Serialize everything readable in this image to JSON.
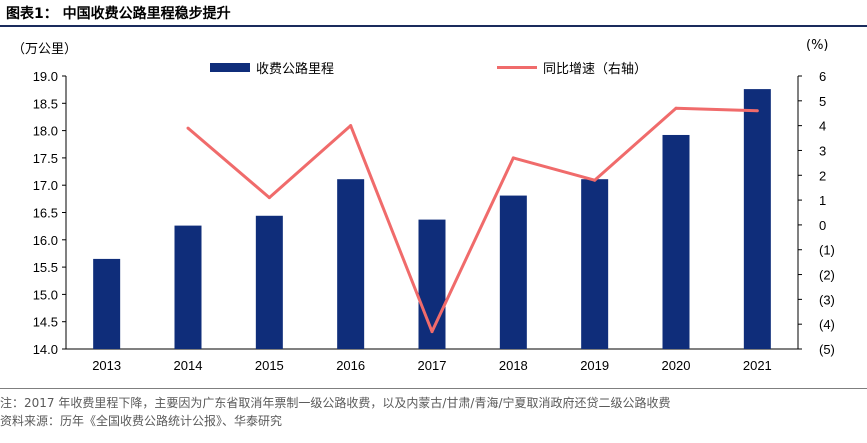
{
  "figure": {
    "title": "图表1：  中国收费公路里程稳步提升",
    "note": "注：2017 年收费里程下降，主要因为广东省取消年票制一级公路收费，以及内蒙古/甘肃/青海/宁夏取消政府还贷二级公路收费",
    "source": "资料来源：历年《全国收费公路统计公报》、华泰研究"
  },
  "colors": {
    "bar": "#0f2d7a",
    "line": "#f06b6b",
    "title_rule": "#1a2b5c"
  },
  "chart_data": {
    "type": "bar",
    "categories": [
      "2013",
      "2014",
      "2015",
      "2016",
      "2017",
      "2018",
      "2019",
      "2020",
      "2021"
    ],
    "series": [
      {
        "name": "收费公路里程",
        "type": "bar",
        "axis": "left",
        "values": [
          15.65,
          16.26,
          16.44,
          17.11,
          16.37,
          16.81,
          17.11,
          17.92,
          18.76
        ]
      },
      {
        "name": "同比增速（右轴）",
        "type": "line",
        "axis": "right",
        "values": [
          null,
          3.9,
          1.1,
          4.0,
          -4.3,
          2.7,
          1.8,
          4.7,
          4.6
        ]
      }
    ],
    "ylabel": "（万公里）",
    "y2label": "(%)",
    "ylim": [
      14.0,
      19.0
    ],
    "y2lim": [
      -5,
      6
    ],
    "yticks": [
      "14.0",
      "14.5",
      "15.0",
      "15.5",
      "16.0",
      "16.5",
      "17.0",
      "17.5",
      "18.0",
      "18.5",
      "19.0"
    ],
    "y2ticks": [
      "(5)",
      "(4)",
      "(3)",
      "(2)",
      "(1)",
      "0",
      "1",
      "2",
      "3",
      "4",
      "5",
      "6"
    ],
    "legend": "top",
    "grid": false
  }
}
